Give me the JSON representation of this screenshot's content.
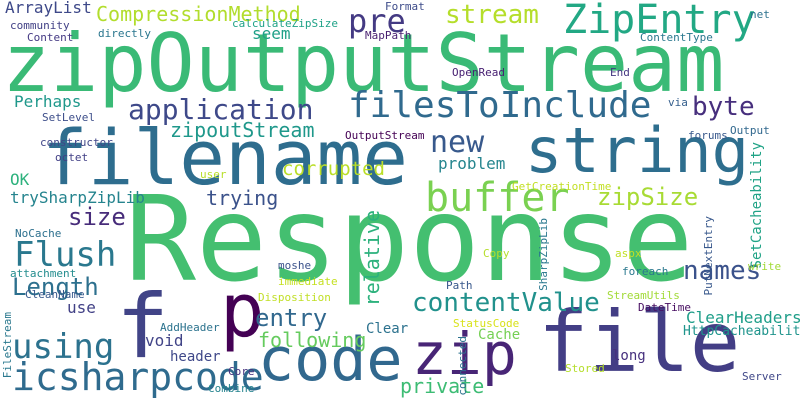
{
  "words": [
    {
      "text": "Response",
      "color": "#44bf70",
      "vertical": false
    },
    {
      "text": "zipOutputStream",
      "color": "#3aba76",
      "vertical": false
    },
    {
      "text": "file",
      "color": "#433e85",
      "vertical": false
    },
    {
      "text": "filename",
      "color": "#2e6d8e",
      "vertical": false
    },
    {
      "text": "string",
      "color": "#2e6e8e",
      "vertical": false
    },
    {
      "text": "code",
      "color": "#31688e",
      "vertical": false
    },
    {
      "text": "zip",
      "color": "#482576",
      "vertical": false
    },
    {
      "text": "f",
      "color": "#414487",
      "vertical": false
    },
    {
      "text": "p",
      "color": "#440154",
      "vertical": false
    },
    {
      "text": "ZipEntry",
      "color": "#22a884",
      "vertical": false
    },
    {
      "text": "filesToInclude",
      "color": "#306a8e",
      "vertical": false
    },
    {
      "text": "buffer",
      "color": "#7ad151",
      "vertical": false
    },
    {
      "text": "icsharpcode",
      "color": "#2f6b8e",
      "vertical": false
    },
    {
      "text": "using",
      "color": "#2c728e",
      "vertical": false
    },
    {
      "text": "Flush",
      "color": "#2a788e",
      "vertical": false
    },
    {
      "text": "application",
      "color": "#3e4989",
      "vertical": false
    },
    {
      "text": "new",
      "color": "#38598c",
      "vertical": false
    },
    {
      "text": "stream",
      "color": "#b5de2b",
      "vertical": false
    },
    {
      "text": "CompressionMethod",
      "color": "#b2dd2d",
      "vertical": false
    },
    {
      "text": "pre",
      "color": "#443a83",
      "vertical": false
    },
    {
      "text": "zipoutStream",
      "color": "#1f988b",
      "vertical": false
    },
    {
      "text": "zipSize",
      "color": "#a8db34",
      "vertical": false
    },
    {
      "text": "entry",
      "color": "#31688e",
      "vertical": false
    },
    {
      "text": "contentValue",
      "color": "#21918c",
      "vertical": false
    },
    {
      "text": "names",
      "color": "#3b528b",
      "vertical": false
    },
    {
      "text": "byte",
      "color": "#472f7d",
      "vertical": false
    },
    {
      "text": "size",
      "color": "#472c7a",
      "vertical": false
    },
    {
      "text": "Length",
      "color": "#2d708e",
      "vertical": false
    },
    {
      "text": "corrupted",
      "color": "#bade28",
      "vertical": false
    },
    {
      "text": "trying",
      "color": "#3b528b",
      "vertical": false
    },
    {
      "text": "following",
      "color": "#65cb5e",
      "vertical": false
    },
    {
      "text": "private",
      "color": "#3dbc74",
      "vertical": false
    },
    {
      "text": "relative",
      "color": "#2db27d",
      "vertical": true
    },
    {
      "text": "ArrayList",
      "color": "#3e4989",
      "vertical": false
    },
    {
      "text": "seem",
      "color": "#1fa088",
      "vertical": false
    },
    {
      "text": "problem",
      "color": "#25858e",
      "vertical": false
    },
    {
      "text": "Perhaps",
      "color": "#1f988b",
      "vertical": false
    },
    {
      "text": "OK",
      "color": "#2db27d",
      "vertical": false
    },
    {
      "text": "trySharpZipLib",
      "color": "#25848e",
      "vertical": false
    },
    {
      "text": "ClearHeaders",
      "color": "#1f9e89",
      "vertical": false
    },
    {
      "text": "HttpCacheability",
      "color": "#1f948c",
      "vertical": false
    },
    {
      "text": "SetCacheability",
      "color": "#20a386",
      "vertical": true
    },
    {
      "text": "void",
      "color": "#414487",
      "vertical": false
    },
    {
      "text": "use",
      "color": "#424186",
      "vertical": false
    },
    {
      "text": "Clear",
      "color": "#2c728e",
      "vertical": false
    },
    {
      "text": "header",
      "color": "#3f4889",
      "vertical": false
    },
    {
      "text": "Cache",
      "color": "#75d054",
      "vertical": false
    },
    {
      "text": "long",
      "color": "#46307e",
      "vertical": false
    },
    {
      "text": "community",
      "color": "#424186",
      "vertical": false
    },
    {
      "text": "Content",
      "color": "#443983",
      "vertical": false
    },
    {
      "text": "directly",
      "color": "#2a768e",
      "vertical": false
    },
    {
      "text": "calculateZipSize",
      "color": "#1fa287",
      "vertical": false
    },
    {
      "text": "Format",
      "color": "#3e4c8a",
      "vertical": false
    },
    {
      "text": "MapPath",
      "color": "#481f70",
      "vertical": false
    },
    {
      "text": "net",
      "color": "#2c728e",
      "vertical": false
    },
    {
      "text": "ContentType",
      "color": "#2a788e",
      "vertical": false
    },
    {
      "text": "OpenRead",
      "color": "#482173",
      "vertical": false
    },
    {
      "text": "End",
      "color": "#453882",
      "vertical": false
    },
    {
      "text": "SetLevel",
      "color": "#3d4e8a",
      "vertical": false
    },
    {
      "text": "constructor",
      "color": "#404688",
      "vertical": false
    },
    {
      "text": "octet",
      "color": "#424086",
      "vertical": false
    },
    {
      "text": "OutputStream",
      "color": "#440154",
      "vertical": false
    },
    {
      "text": "forums",
      "color": "#38588c",
      "vertical": false
    },
    {
      "text": "Output",
      "color": "#31688e",
      "vertical": false
    },
    {
      "text": "via",
      "color": "#355f8d",
      "vertical": false
    },
    {
      "text": "DateTime",
      "color": "#470e61",
      "vertical": false
    },
    {
      "text": "user",
      "color": "#b8de29",
      "vertical": false
    },
    {
      "text": "GetCreationTime",
      "color": "#c2df23",
      "vertical": false
    },
    {
      "text": "NoCache",
      "color": "#2d708e",
      "vertical": false
    },
    {
      "text": "attachment",
      "color": "#228c8d",
      "vertical": false
    },
    {
      "text": "moshe",
      "color": "#3b528b",
      "vertical": false
    },
    {
      "text": "immediate",
      "color": "#c5e021",
      "vertical": false
    },
    {
      "text": "Copy",
      "color": "#b5de2b",
      "vertical": false
    },
    {
      "text": "aspx",
      "color": "#c0df25",
      "vertical": false
    },
    {
      "text": "write",
      "color": "#a2da37",
      "vertical": false
    },
    {
      "text": "foreach",
      "color": "#2a788e",
      "vertical": false
    },
    {
      "text": "Path",
      "color": "#38588c",
      "vertical": false
    },
    {
      "text": "StreamUtils",
      "color": "#a2da37",
      "vertical": false
    },
    {
      "text": "SharpZipLib",
      "color": "#2a788e",
      "vertical": true
    },
    {
      "text": "PutNextEntry",
      "color": "#38588c",
      "vertical": true
    },
    {
      "text": "Disposition",
      "color": "#c0df25",
      "vertical": false
    },
    {
      "text": "StatusCode",
      "color": "#d8e219",
      "vertical": false
    },
    {
      "text": "CleanName",
      "color": "#38598c",
      "vertical": false
    },
    {
      "text": "AddHeader",
      "color": "#2c738e",
      "vertical": false
    },
    {
      "text": "FileStream",
      "color": "#2a788e",
      "vertical": true
    },
    {
      "text": "Core",
      "color": "#46327e",
      "vertical": false
    },
    {
      "text": "Combine",
      "color": "#25838e",
      "vertical": false
    },
    {
      "text": "Stored",
      "color": "#b5de2b",
      "vertical": false
    },
    {
      "text": "connected",
      "color": "#2c728e",
      "vertical": true
    },
    {
      "text": "Server",
      "color": "#3f4788",
      "vertical": false
    }
  ]
}
